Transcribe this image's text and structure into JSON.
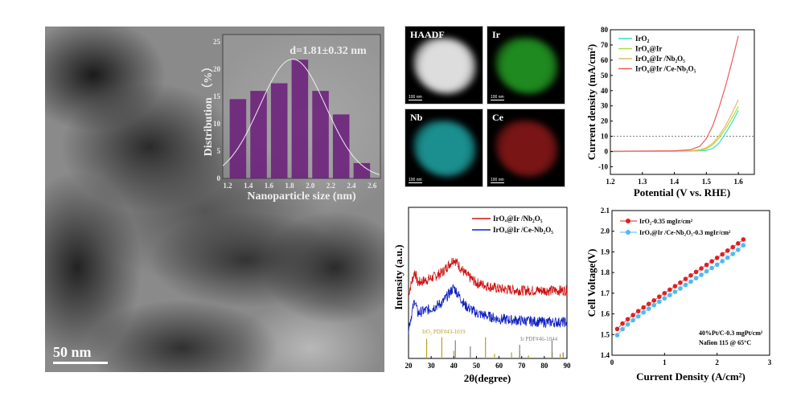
{
  "tem": {
    "scale_bar": "50 nm"
  },
  "eds": {
    "panels": [
      {
        "label": "HAADF",
        "color": "#dddddd"
      },
      {
        "label": "Ir",
        "color": "#1f8a1f"
      },
      {
        "label": "Nb",
        "color": "#1b8f8f"
      },
      {
        "label": "Ce",
        "color": "#7a1515"
      }
    ],
    "scale_bar": "100 nm"
  },
  "chart_data": [
    {
      "type": "bar",
      "title": "d=1.81±0.32 nm",
      "xlabel": "Nanoparticle size (nm)",
      "ylabel": "Distribution （%）",
      "x": [
        1.3,
        1.5,
        1.7,
        1.9,
        2.1,
        2.3,
        2.5
      ],
      "values": [
        14.5,
        16,
        17.4,
        21.7,
        16,
        11.7,
        2.8
      ],
      "fit": {
        "type": "gaussian",
        "mean": 1.81,
        "sigma": 0.32,
        "peak": 21.8
      },
      "xticks": [
        "1.2",
        "1.4",
        "1.6",
        "1.8",
        "2.0",
        "2.2",
        "2.4",
        "2.6"
      ],
      "yticks": [
        "0",
        "5",
        "10",
        "15",
        "20",
        "25"
      ],
      "xlim": [
        1.153,
        2.68
      ],
      "ylim": [
        0,
        26.3
      ],
      "bar_color": "#6a1b7a"
    },
    {
      "type": "line",
      "xlabel": "Potential (V vs. RHE)",
      "ylabel": "Current density (mA/cm²)",
      "xlim": [
        1.2,
        1.65
      ],
      "ylim": [
        -15,
        80
      ],
      "xticks": [
        "1.2",
        "1.3",
        "1.4",
        "1.5",
        "1.6"
      ],
      "yticks": [
        "-10",
        "0",
        "10",
        "20",
        "30",
        "40",
        "50",
        "60",
        "70",
        "80"
      ],
      "reference_line": 10,
      "legend": "top-left",
      "x": [
        1.2,
        1.4,
        1.45,
        1.48,
        1.5,
        1.52,
        1.54,
        1.56,
        1.58,
        1.6
      ],
      "series": [
        {
          "name": "IrO",
          "sub": "2",
          "rest": "",
          "color": "#33e0c0",
          "values": [
            0,
            0.2,
            0.3,
            0.5,
            0.8,
            2,
            5.5,
            12,
            19,
            27
          ]
        },
        {
          "name": "IrO",
          "sub": "x",
          "rest": "@Ir",
          "color": "#a8e040",
          "values": [
            0,
            0.2,
            0.4,
            0.8,
            1.8,
            4.5,
            9,
            15,
            22,
            29.5
          ]
        },
        {
          "name": "IrO",
          "sub": "x",
          "rest": "@Ir /Nb₂O₅",
          "color": "#e8b860",
          "values": [
            0,
            0.2,
            0.5,
            1.2,
            2.5,
            5.5,
            10.5,
            17,
            25,
            34
          ]
        },
        {
          "name": "IrO",
          "sub": "x",
          "rest": "@Ir /Ce-Nb₂O₅",
          "color": "#f05a5a",
          "values": [
            0.2,
            0.5,
            1.2,
            3.5,
            8.5,
            17,
            29,
            43,
            59,
            76
          ]
        }
      ]
    },
    {
      "type": "line",
      "xlabel": "2θ(degree)",
      "ylabel": "Intensity (a.u.)",
      "xlim": [
        20,
        90
      ],
      "ylim": [
        0,
        1
      ],
      "xticks": [
        "20",
        "30",
        "40",
        "50",
        "60",
        "70",
        "80",
        "90"
      ],
      "legend": "top-right",
      "series": [
        {
          "name": "IrOₓ@Ir /Nb₂O₅",
          "color": "#d01010",
          "x": [
            20,
            22.8,
            24,
            30,
            35,
            40,
            45,
            50,
            60,
            70,
            80,
            90
          ],
          "values": [
            0.43,
            0.58,
            0.5,
            0.53,
            0.57,
            0.66,
            0.56,
            0.5,
            0.46,
            0.45,
            0.45,
            0.45
          ]
        },
        {
          "name": "IrOₓ@Ir /Ce-Nb₂O₅",
          "color": "#1020c0",
          "x": [
            20,
            22.8,
            24,
            30,
            35,
            40,
            45,
            50,
            60,
            70,
            80,
            90
          ],
          "values": [
            0.2,
            0.39,
            0.3,
            0.33,
            0.37,
            0.47,
            0.35,
            0.3,
            0.26,
            0.25,
            0.24,
            0.24
          ]
        }
      ],
      "references": [
        {
          "name": "IrO₂ PDF#43-1019",
          "color": "#b8a020",
          "peaks": [
            [
              28,
              0.13
            ],
            [
              34.7,
              0.14
            ],
            [
              40,
              0.05
            ],
            [
              54,
              0.14
            ],
            [
              58,
              0.03
            ],
            [
              65.5,
              0.04
            ],
            [
              69.1,
              0.05
            ],
            [
              73,
              0.02
            ],
            [
              83.5,
              0.04
            ],
            [
              87,
              0.03
            ]
          ]
        },
        {
          "name": "Ir PDF#46-1044",
          "color": "#808080",
          "peaks": [
            [
              40.7,
              0.12
            ],
            [
              47.3,
              0.08
            ],
            [
              69.1,
              0.09
            ],
            [
              83.4,
              0.12
            ],
            [
              88.3,
              0.04
            ]
          ]
        }
      ]
    },
    {
      "type": "scatter",
      "xlabel": "Current Density (A/cm²)",
      "ylabel": "Cell Voltage(V)",
      "xlim": [
        0,
        3
      ],
      "ylim": [
        1.4,
        2.1
      ],
      "xticks": [
        "0",
        "1",
        "2",
        "3"
      ],
      "yticks": [
        "1.4",
        "1.5",
        "1.6",
        "1.7",
        "1.8",
        "1.9",
        "2.0",
        "2.1"
      ],
      "legend": "top-left",
      "annotation": [
        "40%Pt/C-0.3 mgPt/cm²",
        "Nafion 115 @ 65°C"
      ],
      "x": [
        0.1,
        0.2,
        0.3,
        0.4,
        0.5,
        0.6,
        0.7,
        0.8,
        0.9,
        1.0,
        1.1,
        1.2,
        1.3,
        1.4,
        1.5,
        1.6,
        1.7,
        1.8,
        1.9,
        2.0,
        2.1,
        2.2,
        2.3,
        2.4,
        2.5
      ],
      "series": [
        {
          "name": "IrO₂-0.35 mgIr/cm²",
          "color": "#e02020",
          "values": [
            1.527,
            1.553,
            1.574,
            1.594,
            1.613,
            1.631,
            1.648,
            1.665,
            1.683,
            1.7,
            1.717,
            1.734,
            1.751,
            1.769,
            1.786,
            1.803,
            1.82,
            1.837,
            1.854,
            1.871,
            1.888,
            1.906,
            1.923,
            1.941,
            1.96
          ]
        },
        {
          "name": "IrOₓ@Ir /Ce-Nb₂O₅-0.3 mgIr/cm²",
          "color": "#50b8f0",
          "values": [
            1.497,
            1.526,
            1.549,
            1.569,
            1.588,
            1.607,
            1.625,
            1.642,
            1.659,
            1.675,
            1.691,
            1.707,
            1.723,
            1.74,
            1.756,
            1.773,
            1.789,
            1.806,
            1.822,
            1.838,
            1.855,
            1.872,
            1.89,
            1.91,
            1.932
          ]
        }
      ]
    }
  ]
}
